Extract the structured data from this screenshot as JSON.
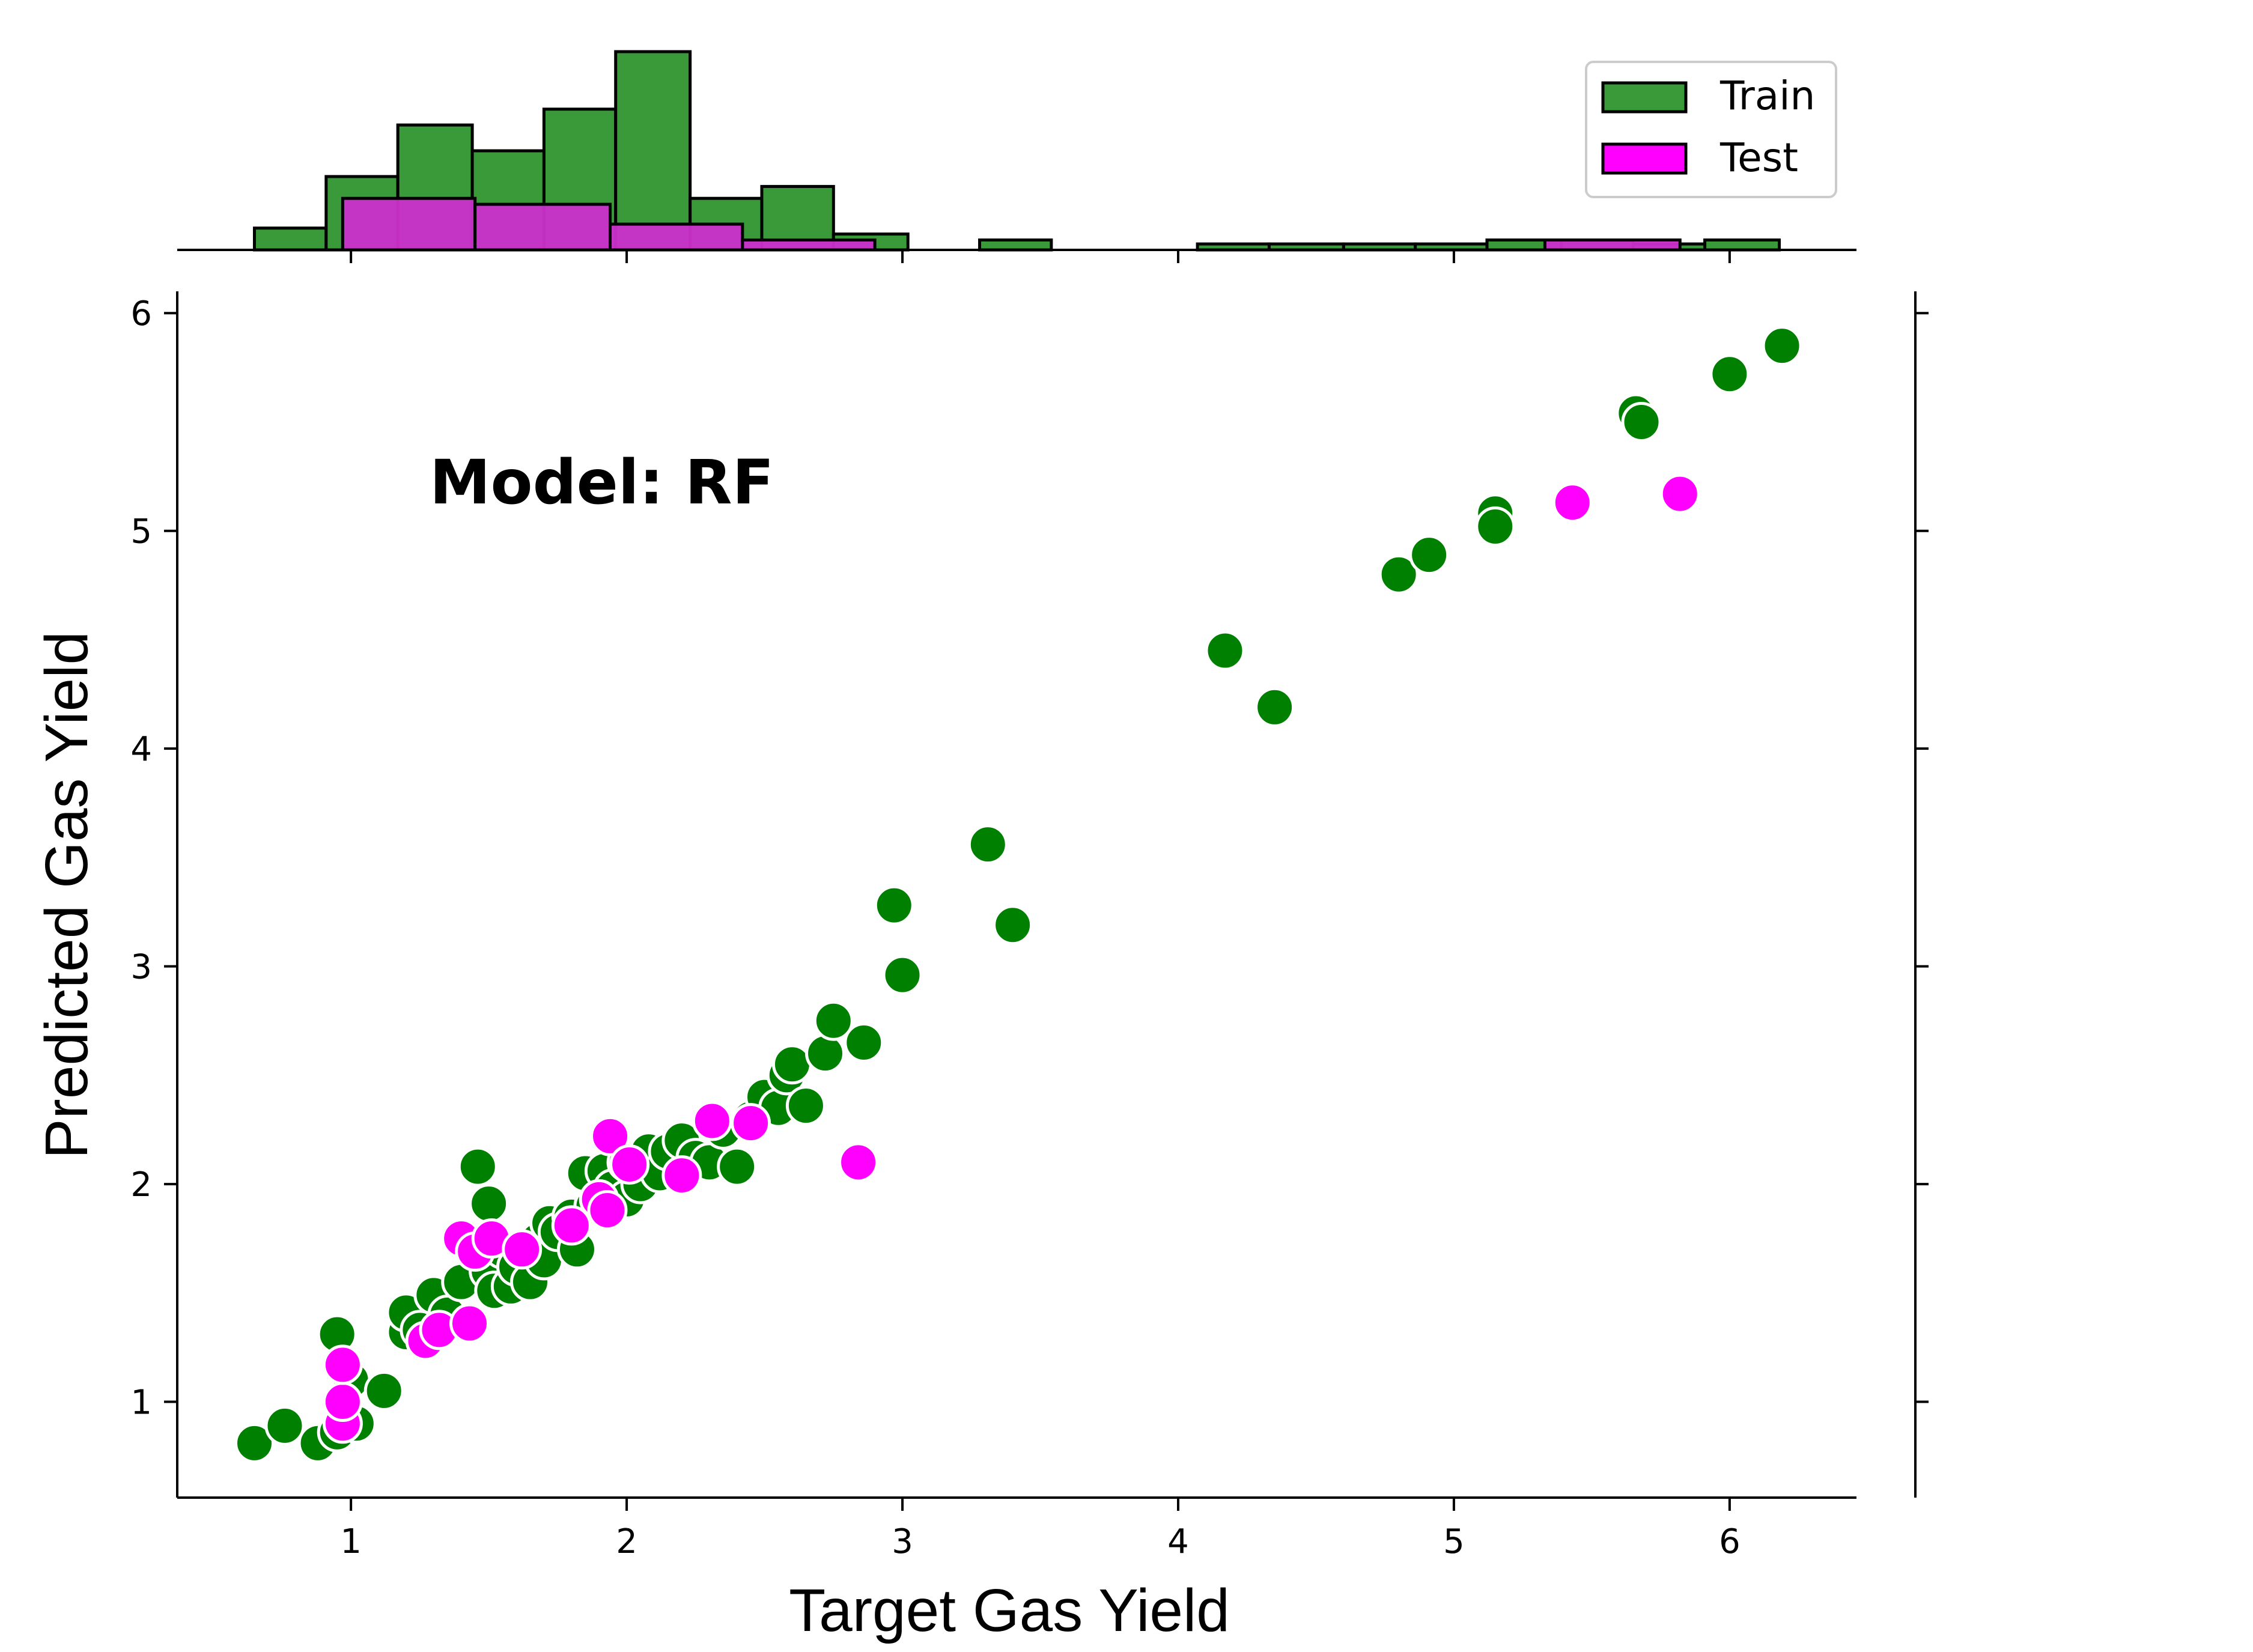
{
  "chart_data": {
    "type": "scatter",
    "annotation": "Model: RF",
    "xlabel": "Target Gas Yield",
    "ylabel": "Predicted Gas Yield",
    "xlim": [
      0.37,
      6.46
    ],
    "ylim": [
      0.56,
      6.1
    ],
    "xticks": [
      1,
      2,
      3,
      4,
      5,
      6
    ],
    "yticks": [
      1,
      2,
      3,
      4,
      5,
      6
    ],
    "legend": {
      "placement": "top-right",
      "entries": [
        "Train",
        "Test"
      ]
    },
    "colors": {
      "train_fill": "#008000",
      "test_fill": "#ff00ff",
      "train_hist": "#3a9a3a",
      "test_hist": "#cc2fcc",
      "edge": "#000000"
    },
    "series": [
      {
        "name": "Train",
        "points": [
          [
            0.65,
            0.81
          ],
          [
            0.76,
            0.89
          ],
          [
            0.88,
            0.81
          ],
          [
            0.95,
            0.86
          ],
          [
            1.02,
            0.9
          ],
          [
            0.95,
            1.31
          ],
          [
            1.0,
            1.1
          ],
          [
            1.12,
            1.05
          ],
          [
            1.2,
            1.32
          ],
          [
            1.2,
            1.41
          ],
          [
            1.25,
            1.33
          ],
          [
            1.3,
            1.49
          ],
          [
            1.35,
            1.4
          ],
          [
            1.4,
            1.55
          ],
          [
            1.46,
            2.08
          ],
          [
            1.5,
            1.91
          ],
          [
            1.5,
            1.6
          ],
          [
            1.52,
            1.51
          ],
          [
            1.55,
            1.7
          ],
          [
            1.58,
            1.53
          ],
          [
            1.6,
            1.62
          ],
          [
            1.65,
            1.55
          ],
          [
            1.68,
            1.74
          ],
          [
            1.7,
            1.65
          ],
          [
            1.72,
            1.82
          ],
          [
            1.75,
            1.78
          ],
          [
            1.8,
            1.85
          ],
          [
            1.82,
            1.7
          ],
          [
            1.85,
            2.05
          ],
          [
            1.88,
            1.9
          ],
          [
            1.92,
            2.06
          ],
          [
            1.95,
            1.98
          ],
          [
            2.0,
            1.93
          ],
          [
            2.0,
            2.1
          ],
          [
            2.05,
            2.0
          ],
          [
            2.08,
            2.15
          ],
          [
            2.12,
            2.05
          ],
          [
            2.15,
            2.15
          ],
          [
            2.2,
            2.2
          ],
          [
            2.25,
            2.12
          ],
          [
            2.3,
            2.1
          ],
          [
            2.35,
            2.25
          ],
          [
            2.4,
            2.08
          ],
          [
            2.45,
            2.3
          ],
          [
            2.5,
            2.4
          ],
          [
            2.55,
            2.35
          ],
          [
            2.58,
            2.5
          ],
          [
            2.6,
            2.55
          ],
          [
            2.65,
            2.36
          ],
          [
            2.72,
            2.6
          ],
          [
            2.75,
            2.75
          ],
          [
            2.86,
            2.65
          ],
          [
            2.97,
            3.28
          ],
          [
            3.0,
            2.96
          ],
          [
            3.31,
            3.56
          ],
          [
            3.4,
            3.19
          ],
          [
            4.17,
            4.45
          ],
          [
            4.35,
            4.19
          ],
          [
            4.8,
            4.8
          ],
          [
            4.91,
            4.89
          ],
          [
            5.15,
            5.08
          ],
          [
            5.15,
            5.02
          ],
          [
            5.66,
            5.54
          ],
          [
            5.68,
            5.5
          ],
          [
            6.0,
            5.72
          ],
          [
            6.19,
            5.85
          ]
        ]
      },
      {
        "name": "Test",
        "points": [
          [
            0.97,
            0.9
          ],
          [
            0.97,
            1.0
          ],
          [
            0.97,
            1.17
          ],
          [
            1.27,
            1.28
          ],
          [
            1.32,
            1.33
          ],
          [
            1.43,
            1.36
          ],
          [
            1.4,
            1.75
          ],
          [
            1.45,
            1.69
          ],
          [
            1.51,
            1.75
          ],
          [
            1.62,
            1.7
          ],
          [
            1.8,
            1.81
          ],
          [
            1.9,
            1.93
          ],
          [
            1.93,
            1.88
          ],
          [
            1.94,
            2.22
          ],
          [
            2.01,
            2.09
          ],
          [
            2.2,
            2.04
          ],
          [
            2.31,
            2.29
          ],
          [
            2.45,
            2.28
          ],
          [
            2.84,
            2.1
          ],
          [
            5.43,
            5.13
          ],
          [
            5.82,
            5.17
          ]
        ]
      }
    ],
    "marginal_histogram": {
      "train": {
        "bins": [
          [
            0.65,
            0.91
          ],
          [
            0.91,
            1.17
          ],
          [
            1.17,
            1.44
          ],
          [
            1.44,
            1.7
          ],
          [
            1.7,
            1.96
          ],
          [
            1.96,
            2.23
          ],
          [
            2.23,
            2.49
          ],
          [
            2.49,
            2.75
          ],
          [
            2.75,
            3.02
          ],
          [
            3.28,
            3.54
          ],
          [
            4.07,
            4.33
          ],
          [
            4.33,
            4.6
          ],
          [
            4.6,
            4.86
          ],
          [
            4.86,
            5.12
          ],
          [
            5.12,
            5.39
          ],
          [
            5.39,
            5.65
          ],
          [
            5.65,
            5.91
          ],
          [
            5.91,
            6.18
          ]
        ],
        "heights": [
          0.11,
          0.37,
          0.63,
          0.5,
          0.71,
          1.0,
          0.26,
          0.32,
          0.08,
          0.05,
          0.03,
          0.03,
          0.03,
          0.03,
          0.05,
          0.05,
          0.03,
          0.05
        ]
      },
      "test": {
        "bins": [
          [
            0.97,
            1.45
          ],
          [
            1.45,
            1.94
          ],
          [
            1.94,
            2.42
          ],
          [
            2.42,
            2.9
          ],
          [
            5.33,
            5.82
          ]
        ],
        "heights": [
          0.26,
          0.23,
          0.13,
          0.05,
          0.05
        ]
      }
    }
  }
}
